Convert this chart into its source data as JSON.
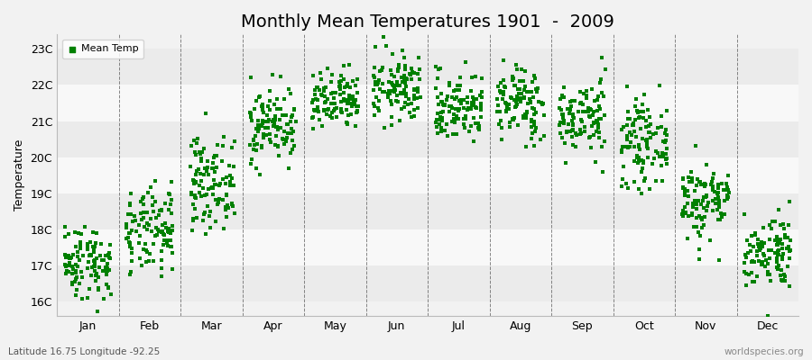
{
  "title": "Monthly Mean Temperatures 1901  -  2009",
  "ylabel": "Temperature",
  "subtitle": "Latitude 16.75 Longitude -92.25",
  "watermark": "worldspecies.org",
  "yticks": [
    16,
    17,
    18,
    19,
    20,
    21,
    22,
    23
  ],
  "ytick_labels": [
    "16C",
    "17C",
    "18C",
    "19C",
    "20C",
    "21C",
    "22C",
    "23C"
  ],
  "ylim": [
    15.6,
    23.4
  ],
  "months": [
    "Jan",
    "Feb",
    "Mar",
    "Apr",
    "May",
    "Jun",
    "Jul",
    "Aug",
    "Sep",
    "Oct",
    "Nov",
    "Dec"
  ],
  "dot_color": "#008000",
  "background_color": "#f2f2f2",
  "band_colors": [
    "#ebebeb",
    "#f8f8f8"
  ],
  "marker_size": 2.5,
  "n_years": 109,
  "monthly_means": [
    17.1,
    17.9,
    19.3,
    20.9,
    21.5,
    21.9,
    21.4,
    21.5,
    21.1,
    20.4,
    18.8,
    17.4
  ],
  "monthly_stds": [
    0.52,
    0.6,
    0.62,
    0.52,
    0.42,
    0.48,
    0.48,
    0.52,
    0.52,
    0.58,
    0.55,
    0.52
  ],
  "title_fontsize": 14,
  "axis_fontsize": 9,
  "legend_fontsize": 8,
  "tick_fontsize": 9
}
